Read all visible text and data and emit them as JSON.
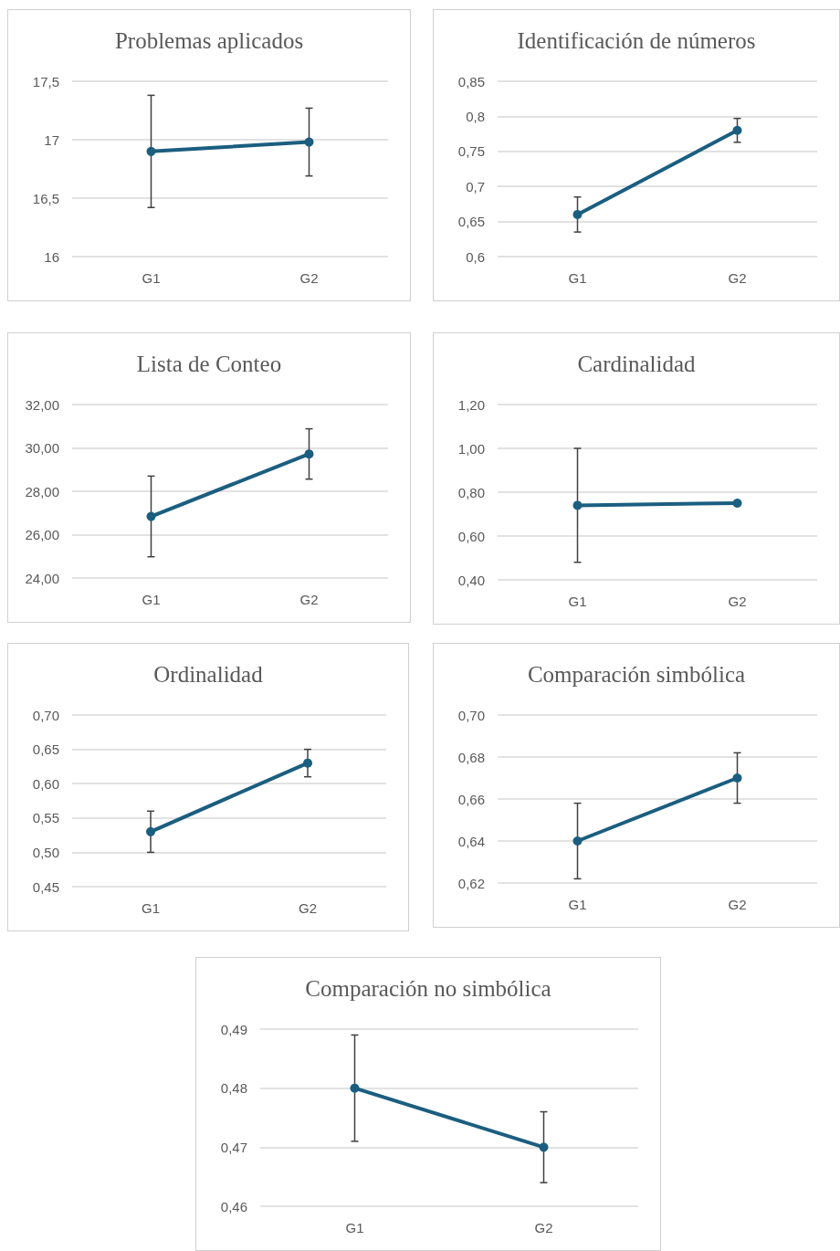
{
  "chart_data": [
    {
      "type": "line",
      "title": "Problemas aplicados",
      "categories": [
        "G1",
        "G2"
      ],
      "values": [
        16.9,
        16.98
      ],
      "errors": [
        0.48,
        0.29
      ],
      "color": "#1b5e80",
      "ylim": [
        16,
        17.5
      ],
      "yticks": [
        {
          "value": 16,
          "label": "16"
        },
        {
          "value": 16.5,
          "label": "16,5"
        },
        {
          "value": 17,
          "label": "17"
        },
        {
          "value": 17.5,
          "label": "17,5"
        }
      ],
      "grid": "y",
      "marker": "circle",
      "line_style": "solid"
    },
    {
      "type": "line",
      "title": "Identificación de números",
      "categories": [
        "G1",
        "G2"
      ],
      "values": [
        0.66,
        0.78
      ],
      "errors": [
        0.025,
        0.017
      ],
      "color": "#1b5e80",
      "ylim": [
        0.6,
        0.85
      ],
      "yticks": [
        {
          "value": 0.6,
          "label": "0,6"
        },
        {
          "value": 0.65,
          "label": "0,65"
        },
        {
          "value": 0.7,
          "label": "0,7"
        },
        {
          "value": 0.75,
          "label": "0,75"
        },
        {
          "value": 0.8,
          "label": "0,8"
        },
        {
          "value": 0.85,
          "label": "0,85"
        }
      ],
      "grid": "y",
      "marker": "circle",
      "line_style": "solid"
    },
    {
      "type": "line",
      "title": "Lista de Conteo",
      "categories": [
        "G1",
        "G2"
      ],
      "values": [
        26.84,
        29.72
      ],
      "errors": [
        1.86,
        1.16
      ],
      "color": "#1b5e80",
      "ylim": [
        24,
        32
      ],
      "yticks": [
        {
          "value": 24,
          "label": "24,00"
        },
        {
          "value": 26,
          "label": "26,00"
        },
        {
          "value": 28,
          "label": "28,00"
        },
        {
          "value": 30,
          "label": "30,00"
        },
        {
          "value": 32,
          "label": "32,00"
        }
      ],
      "grid": "y",
      "marker": "circle",
      "line_style": "solid"
    },
    {
      "type": "line",
      "title": "Cardinalidad",
      "categories": [
        "G1",
        "G2"
      ],
      "values": [
        0.74,
        0.75
      ],
      "errors": [
        0.26,
        null
      ],
      "color": "#1b5e80",
      "ylim": [
        0.4,
        1.2
      ],
      "yticks": [
        {
          "value": 0.4,
          "label": "0,40"
        },
        {
          "value": 0.6,
          "label": "0,60"
        },
        {
          "value": 0.8,
          "label": "0,80"
        },
        {
          "value": 1.0,
          "label": "1,00"
        },
        {
          "value": 1.2,
          "label": "1,20"
        }
      ],
      "grid": "y",
      "marker": "circle",
      "line_style": "solid"
    },
    {
      "type": "line",
      "title": "Ordinalidad",
      "categories": [
        "G1",
        "G2"
      ],
      "values": [
        0.53,
        0.63
      ],
      "errors": [
        0.03,
        0.02
      ],
      "color": "#1b5e80",
      "ylim": [
        0.45,
        0.7
      ],
      "yticks": [
        {
          "value": 0.45,
          "label": "0,45"
        },
        {
          "value": 0.5,
          "label": "0,50"
        },
        {
          "value": 0.55,
          "label": "0,55"
        },
        {
          "value": 0.6,
          "label": "0,60"
        },
        {
          "value": 0.65,
          "label": "0,65"
        },
        {
          "value": 0.7,
          "label": "0,70"
        }
      ],
      "grid": "y",
      "marker": "circle",
      "line_style": "solid"
    },
    {
      "type": "line",
      "title": "Comparación simbólica",
      "categories": [
        "G1",
        "G2"
      ],
      "values": [
        0.64,
        0.67
      ],
      "errors": [
        0.018,
        0.012
      ],
      "color": "#1b5e80",
      "ylim": [
        0.62,
        0.7
      ],
      "yticks": [
        {
          "value": 0.62,
          "label": "0,62"
        },
        {
          "value": 0.64,
          "label": "0,64"
        },
        {
          "value": 0.66,
          "label": "0,66"
        },
        {
          "value": 0.68,
          "label": "0,68"
        },
        {
          "value": 0.7,
          "label": "0,70"
        }
      ],
      "grid": "y",
      "marker": "circle",
      "line_style": "solid"
    },
    {
      "type": "line",
      "title": "Comparación no simbólica",
      "categories": [
        "G1",
        "G2"
      ],
      "values": [
        0.48,
        0.47
      ],
      "errors": [
        0.009,
        0.006
      ],
      "color": "#1b5e80",
      "ylim": [
        0.46,
        0.49
      ],
      "yticks": [
        {
          "value": 0.46,
          "label": "0,46"
        },
        {
          "value": 0.47,
          "label": "0,47"
        },
        {
          "value": 0.48,
          "label": "0,48"
        },
        {
          "value": 0.49,
          "label": "0,49"
        }
      ],
      "grid": "y",
      "marker": "circle",
      "line_style": "solid"
    }
  ]
}
